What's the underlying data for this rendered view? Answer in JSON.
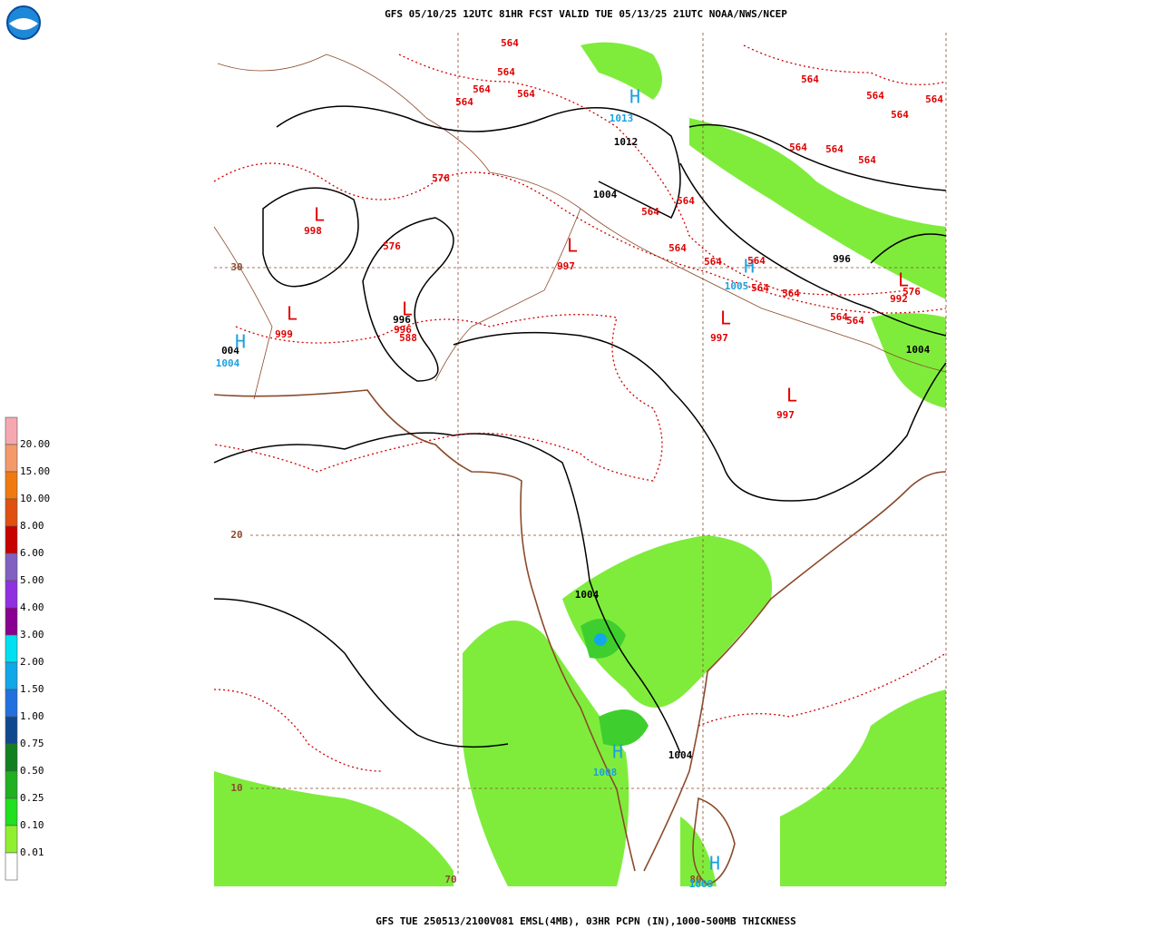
{
  "header": {
    "title": "GFS 05/10/25 12UTC 81HR FCST VALID TUE 05/13/25 21UTC NOAA/NWS/NCEP"
  },
  "footer": {
    "caption": "GFS TUE 250513/2100V081 EMSL(4MB), 03HR PCPN (IN),1000-500MB THICKNESS"
  },
  "legend": {
    "labels": [
      "20.00",
      "15.00",
      "10.00",
      "8.00",
      "6.00",
      "5.00",
      "4.00",
      "3.00",
      "2.00",
      "1.50",
      "1.00",
      "0.75",
      "0.50",
      "0.25",
      "0.10",
      "0.01"
    ],
    "colors": [
      "#f6a8b0",
      "#f49a6a",
      "#f07a10",
      "#e05010",
      "#c80000",
      "#8060c0",
      "#9030e0",
      "#8a0090",
      "#00e0f0",
      "#10a8e8",
      "#2070e0",
      "#104890",
      "#108020",
      "#20b020",
      "#20e020",
      "#90f030",
      "#ffffff"
    ]
  },
  "map": {
    "grid_labels": [
      "30",
      "20",
      "10",
      "70",
      "80"
    ],
    "pressure_labels": [
      "1012",
      "1004",
      "996",
      "996",
      "004",
      "1004",
      "1004",
      "1004"
    ],
    "highs": [
      {
        "symbol": "H",
        "value": "1013"
      },
      {
        "symbol": "H",
        "value": "1005"
      },
      {
        "symbol": "H",
        "value": "1004"
      },
      {
        "symbol": "H",
        "value": "1008"
      },
      {
        "symbol": "H",
        "value": "1009"
      }
    ],
    "lows": [
      {
        "symbol": "L",
        "value": "998"
      },
      {
        "symbol": "L",
        "value": "997"
      },
      {
        "symbol": "L",
        "value": "999"
      },
      {
        "symbol": "L",
        "value": "996"
      },
      {
        "symbol": "L",
        "value": "997"
      },
      {
        "symbol": "L",
        "value": "997"
      },
      {
        "symbol": "L",
        "value": "992"
      }
    ],
    "thickness_labels": [
      "564",
      "564",
      "564",
      "564",
      "564",
      "564",
      "564",
      "564",
      "564",
      "564",
      "564",
      "564",
      "564",
      "564",
      "564",
      "564",
      "564",
      "564",
      "564",
      "564",
      "564",
      "576",
      "576",
      "576",
      "588"
    ]
  }
}
